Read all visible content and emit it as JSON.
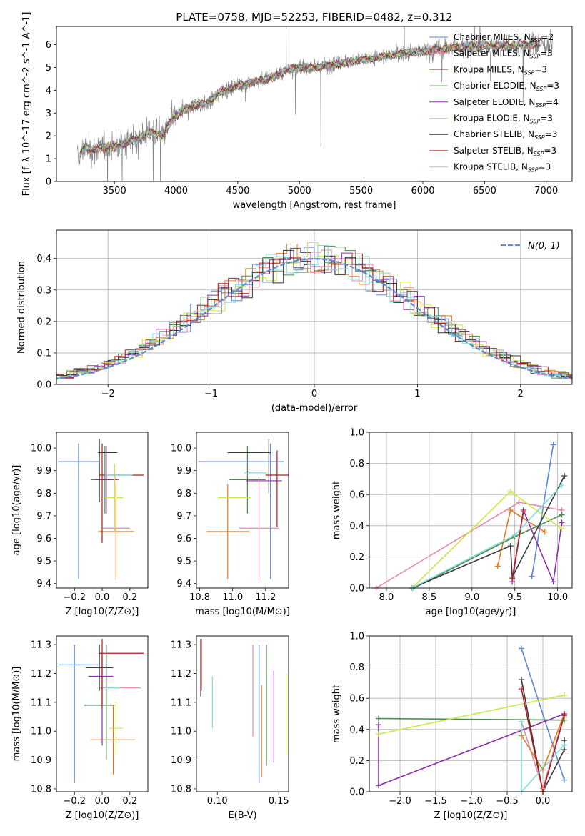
{
  "title": "PLATE=0758, MJD=52253, FIBERID=0482, z=0.312",
  "colors": {
    "Chabrier MILES": "#5b87d6",
    "Salpeter MILES": "#e68aa8",
    "Kroupa MILES": "#e07b22",
    "Chabrier ELODIE": "#4e8a4e",
    "Salpeter ELODIE": "#8e2ea6",
    "Kroupa ELODIE": "#c8e84a",
    "Chabrier STELIB": "#3a3a3a",
    "Salpeter STELIB": "#b01c1c",
    "Kroupa STELIB": "#7fdcdc",
    "data": "#808080",
    "normal": "#5b87d6"
  },
  "chart_data": [
    {
      "id": "spectrum",
      "type": "line",
      "title": "PLATE=0758, MJD=52253, FIBERID=0482, z=0.312",
      "xlabel": "wavelength [Angstrom, rest frame]",
      "ylabel": "Flux [f_λ 10^-17 erg cm^-2 s^-1 A^-1]",
      "xlim": [
        3030,
        7210
      ],
      "ylim": [
        0,
        6.8
      ],
      "xticks": [
        3500,
        4000,
        4500,
        5000,
        5500,
        6000,
        6500,
        7000
      ],
      "yticks": [
        0,
        1,
        2,
        3,
        4,
        5,
        6
      ],
      "legend": "top-right",
      "legend_entries": [
        {
          "name": "Chabrier MILES",
          "sub": "2"
        },
        {
          "name": "Salpeter MILES",
          "sub": "3"
        },
        {
          "name": "Kroupa MILES",
          "sub": "3"
        },
        {
          "name": "Chabrier ELODIE",
          "sub": "3"
        },
        {
          "name": "Salpeter ELODIE",
          "sub": "4"
        },
        {
          "name": "Kroupa ELODIE",
          "sub": "3"
        },
        {
          "name": "Chabrier STELIB",
          "sub": "3"
        },
        {
          "name": "Salpeter STELIB",
          "sub": "3"
        },
        {
          "name": "Kroupa STELIB",
          "sub": "3"
        }
      ],
      "continuum": [
        [
          3200,
          1.0
        ],
        [
          3260,
          1.55
        ],
        [
          3300,
          1.35
        ],
        [
          3400,
          1.5
        ],
        [
          3500,
          1.5
        ],
        [
          3600,
          1.7
        ],
        [
          3700,
          1.9
        ],
        [
          3800,
          2.2
        ],
        [
          3900,
          2.0
        ],
        [
          3950,
          2.6
        ],
        [
          4050,
          3.1
        ],
        [
          4150,
          3.35
        ],
        [
          4250,
          3.4
        ],
        [
          4350,
          3.9
        ],
        [
          4500,
          4.2
        ],
        [
          4650,
          4.4
        ],
        [
          4800,
          4.6
        ],
        [
          4900,
          4.9
        ],
        [
          5000,
          5.0
        ],
        [
          5150,
          5.0
        ],
        [
          5300,
          5.15
        ],
        [
          5450,
          5.3
        ],
        [
          5600,
          5.4
        ],
        [
          5800,
          5.6
        ],
        [
          6000,
          5.7
        ],
        [
          6200,
          5.85
        ],
        [
          6400,
          5.95
        ],
        [
          6600,
          5.95
        ],
        [
          6800,
          6.0
        ],
        [
          7050,
          6.05
        ]
      ],
      "model_range": [
        3220,
        6950
      ],
      "data_range": [
        3200,
        7050
      ],
      "data_noise_sd": 0.45,
      "model_noise_sd": 0.08
    },
    {
      "id": "residuals",
      "type": "area",
      "xlabel": "(data-model)/error",
      "ylabel": "Normed distribution",
      "xlim": [
        -2.5,
        2.5
      ],
      "ylim": [
        0,
        0.49
      ],
      "xticks": [
        -2,
        -1,
        0,
        1,
        2
      ],
      "yticks": [
        0,
        0.1,
        0.2,
        0.3,
        0.4
      ],
      "legend": "top-right",
      "legend_label": "N(0, 1)",
      "bin_width": 0.1,
      "n_histograms": 9
    },
    {
      "id": "age_vs_Z",
      "type": "scatter",
      "xlabel": "Z [log10(Z/Z⊙)]",
      "ylabel": "age [log10(age/yr)]",
      "xlim": [
        -0.33,
        0.33
      ],
      "ylim": [
        9.38,
        10.07
      ],
      "xticks": [
        -0.2,
        0.0,
        0.2
      ],
      "yticks": [
        9.4,
        9.5,
        9.6,
        9.7,
        9.8,
        9.9,
        10.0
      ],
      "points": [
        {
          "model": "Chabrier MILES",
          "x": -0.17,
          "y": 9.94,
          "xerr": 0.15,
          "yerr": 0.08
        },
        {
          "model": "Chabrier MILES",
          "x": -0.17,
          "y": 9.72,
          "xerr": 0.0,
          "yerr": 0.3
        },
        {
          "model": "Salpeter MILES",
          "x": 0.1,
          "y": 9.645,
          "xerr": 0.1,
          "yerr": 0.23
        },
        {
          "model": "Kroupa MILES",
          "x": 0.1,
          "y": 9.63,
          "xerr": 0.13,
          "yerr": 0.21
        },
        {
          "model": "Chabrier ELODIE",
          "x": 0.02,
          "y": 9.86,
          "xerr": 0.1,
          "yerr": 0.15
        },
        {
          "model": "Salpeter ELODIE",
          "x": 0.03,
          "y": 9.86,
          "xerr": 0.08,
          "yerr": 0.15
        },
        {
          "model": "Kroupa ELODIE",
          "x": 0.09,
          "y": 9.78,
          "xerr": 0.06,
          "yerr": 0.15
        },
        {
          "model": "Chabrier STELIB",
          "x": -0.02,
          "y": 9.9,
          "xerr": 0.0,
          "yerr": 0.14
        },
        {
          "model": "Chabrier STELIB",
          "x": 0.04,
          "y": 9.98,
          "xerr": 0.07,
          "yerr": 0.0
        },
        {
          "model": "Salpeter STELIB",
          "x": 0.14,
          "y": 9.88,
          "xerr": 0.16,
          "yerr": 0.0
        },
        {
          "model": "Salpeter STELIB",
          "x": 0.0,
          "y": 9.8,
          "xerr": 0.0,
          "yerr": 0.22
        },
        {
          "model": "Kroupa STELIB",
          "x": 0.12,
          "y": 9.88,
          "xerr": 0.1,
          "yerr": 0.0
        }
      ]
    },
    {
      "id": "age_vs_mass",
      "type": "scatter",
      "xlabel": "mass [log10(M/M⊙)]",
      "ylabel": "",
      "xlim": [
        10.78,
        11.34
      ],
      "ylim": [
        9.38,
        10.07
      ],
      "xticks": [
        10.8,
        11.0,
        11.2
      ],
      "yticks": [
        9.4,
        9.5,
        9.6,
        9.7,
        9.8,
        9.9,
        10.0
      ],
      "points": [
        {
          "model": "Chabrier MILES",
          "x": 11.05,
          "y": 9.94,
          "xerr": 0.26,
          "yerr": 0.0
        },
        {
          "model": "Chabrier MILES",
          "x": 11.23,
          "y": 9.72,
          "xerr": 0.0,
          "yerr": 0.3
        },
        {
          "model": "Salpeter MILES",
          "x": 11.16,
          "y": 9.645,
          "xerr": 0.12,
          "yerr": 0.23
        },
        {
          "model": "Kroupa MILES",
          "x": 10.97,
          "y": 9.63,
          "xerr": 0.13,
          "yerr": 0.21
        },
        {
          "model": "Chabrier ELODIE",
          "x": 11.09,
          "y": 9.86,
          "xerr": 0.11,
          "yerr": 0.15
        },
        {
          "model": "Salpeter ELODIE",
          "x": 11.19,
          "y": 9.855,
          "xerr": 0.11,
          "yerr": 0.0
        },
        {
          "model": "Kroupa ELODIE",
          "x": 11.01,
          "y": 9.78,
          "xerr": 0.1,
          "yerr": 0.0
        },
        {
          "model": "Chabrier STELIB",
          "x": 11.22,
          "y": 9.92,
          "xerr": 0.0,
          "yerr": 0.12
        },
        {
          "model": "Chabrier STELIB",
          "x": 11.1,
          "y": 9.98,
          "xerr": 0.13,
          "yerr": 0.0
        },
        {
          "model": "Salpeter STELIB",
          "x": 11.27,
          "y": 9.88,
          "xerr": 0.07,
          "yerr": 0.0
        },
        {
          "model": "Salpeter STELIB",
          "x": 11.27,
          "y": 9.82,
          "xerr": 0.0,
          "yerr": 0.17
        },
        {
          "model": "Kroupa STELIB",
          "x": 11.14,
          "y": 9.89,
          "xerr": 0.07,
          "yerr": 0.0
        }
      ]
    },
    {
      "id": "weight_vs_age",
      "type": "line",
      "xlabel": "age [log10(age/yr)]",
      "ylabel": "mass weight",
      "xlim": [
        7.8,
        10.17
      ],
      "ylim": [
        0,
        1.0
      ],
      "xticks": [
        8.0,
        8.5,
        9.0,
        9.5,
        10.0
      ],
      "yticks": [
        0.0,
        0.2,
        0.4,
        0.6,
        0.8,
        1.0
      ],
      "series": [
        {
          "model": "Chabrier MILES",
          "x": [
            9.7,
            9.95
          ],
          "y": [
            0.075,
            0.92
          ]
        },
        {
          "model": "Salpeter MILES",
          "x": [
            7.88,
            9.55,
            10.05
          ],
          "y": [
            0.0,
            0.55,
            0.5
          ]
        },
        {
          "model": "Kroupa MILES",
          "x": [
            9.3,
            9.45,
            9.85
          ],
          "y": [
            0.14,
            0.5,
            0.36
          ]
        },
        {
          "model": "Chabrier ELODIE",
          "x": [
            8.32,
            9.5,
            10.05
          ],
          "y": [
            0.0,
            0.33,
            0.47
          ]
        },
        {
          "model": "Salpeter ELODIE",
          "x": [
            9.47,
            9.6,
            9.95,
            10.05
          ],
          "y": [
            0.04,
            0.5,
            0.04,
            0.42
          ]
        },
        {
          "model": "Kroupa ELODIE",
          "x": [
            8.3,
            9.45,
            10.05
          ],
          "y": [
            0.0,
            0.62,
            0.38
          ]
        },
        {
          "model": "Chabrier STELIB",
          "x": [
            8.3,
            9.45,
            9.47,
            10.08
          ],
          "y": [
            0.0,
            0.27,
            0.07,
            0.72
          ]
        },
        {
          "model": "Salpeter STELIB",
          "x": [
            9.47,
            9.6
          ],
          "y": [
            0.06,
            0.49
          ]
        },
        {
          "model": "Kroupa STELIB",
          "x": [
            8.3,
            9.5,
            10.05
          ],
          "y": [
            0.0,
            0.34,
            0.66
          ]
        }
      ]
    },
    {
      "id": "mass_vs_Z",
      "type": "scatter",
      "xlabel": "Z [log10(Z/Z⊙)]",
      "ylabel": "mass [log10(M/M⊙)]",
      "xlim": [
        -0.33,
        0.33
      ],
      "ylim": [
        10.79,
        11.33
      ],
      "xticks": [
        -0.2,
        0.0,
        0.2
      ],
      "yticks": [
        10.8,
        10.9,
        11.0,
        11.1,
        11.2,
        11.3
      ],
      "points": [
        {
          "model": "Chabrier MILES",
          "x": -0.17,
          "y": 11.23,
          "xerr": 0.14,
          "yerr": 0.0
        },
        {
          "model": "Chabrier MILES",
          "x": -0.2,
          "y": 11.06,
          "xerr": 0.0,
          "yerr": 0.24
        },
        {
          "model": "Salpeter MILES",
          "x": 0.13,
          "y": 11.15,
          "xerr": 0.15,
          "yerr": 0.0
        },
        {
          "model": "Kroupa MILES",
          "x": 0.08,
          "y": 10.97,
          "xerr": 0.16,
          "yerr": 0.12
        },
        {
          "model": "Chabrier ELODIE",
          "x": -0.02,
          "y": 11.09,
          "xerr": 0.11,
          "yerr": 0.0
        },
        {
          "model": "Chabrier ELODIE",
          "x": 0.03,
          "y": 11.1,
          "xerr": 0.0,
          "yerr": 0.2
        },
        {
          "model": "Salpeter ELODIE",
          "x": -0.01,
          "y": 11.19,
          "xerr": 0.09,
          "yerr": 0.0
        },
        {
          "model": "Salpeter ELODIE",
          "x": 0.0,
          "y": 11.11,
          "xerr": 0.0,
          "yerr": 0.16
        },
        {
          "model": "Kroupa ELODIE",
          "x": 0.1,
          "y": 11.01,
          "xerr": 0.05,
          "yerr": 0.09
        },
        {
          "model": "Chabrier STELIB",
          "x": -0.02,
          "y": 11.22,
          "xerr": 0.1,
          "yerr": 0.08
        },
        {
          "model": "Salpeter STELIB",
          "x": 0.14,
          "y": 11.27,
          "xerr": 0.16,
          "yerr": 0.0
        },
        {
          "model": "Salpeter STELIB",
          "x": 0.0,
          "y": 11.2,
          "xerr": 0.0,
          "yerr": 0.12
        },
        {
          "model": "Kroupa STELIB",
          "x": 0.08,
          "y": 11.15,
          "xerr": 0.06,
          "yerr": 0.0
        }
      ]
    },
    {
      "id": "mass_vs_ebv",
      "type": "scatter",
      "xlabel": "E(B-V)",
      "ylabel": "",
      "xlim": [
        0.083,
        0.158
      ],
      "ylim": [
        10.79,
        11.33
      ],
      "xticks": [
        0.1,
        0.15
      ],
      "yticks": [
        10.8,
        10.9,
        11.0,
        11.1,
        11.2,
        11.3
      ],
      "points": [
        {
          "model": "Chabrier MILES",
          "x": 0.134,
          "y": 11.06,
          "xerr": 0.0,
          "yerr": 0.24
        },
        {
          "model": "Salpeter MILES",
          "x": 0.129,
          "y": 11.14,
          "xerr": 0.0,
          "yerr": 0.16
        },
        {
          "model": "Kroupa MILES",
          "x": 0.136,
          "y": 11.0,
          "xerr": 0.0,
          "yerr": 0.16
        },
        {
          "model": "Chabrier ELODIE",
          "x": 0.14,
          "y": 11.09,
          "xerr": 0.0,
          "yerr": 0.21
        },
        {
          "model": "Salpeter ELODIE",
          "x": 0.146,
          "y": 11.05,
          "xerr": 0.0,
          "yerr": 0.16
        },
        {
          "model": "Kroupa ELODIE",
          "x": 0.156,
          "y": 11.06,
          "xerr": 0.0,
          "yerr": 0.14
        },
        {
          "model": "Chabrier STELIB",
          "x": 0.0865,
          "y": 11.22,
          "xerr": 0.0,
          "yerr": 0.1
        },
        {
          "model": "Salpeter STELIB",
          "x": 0.087,
          "y": 11.23,
          "xerr": 0.0,
          "yerr": 0.09
        },
        {
          "model": "Kroupa STELIB",
          "x": 0.096,
          "y": 11.1,
          "xerr": 0.0,
          "yerr": 0.09
        }
      ]
    },
    {
      "id": "weight_vs_Z",
      "type": "line",
      "xlabel": "Z [log10(Z/Z⊙)]",
      "ylabel": "mass weight",
      "xlim": [
        -2.43,
        0.41
      ],
      "ylim": [
        0,
        1.0
      ],
      "xticks": [
        -2.0,
        -1.5,
        -1.0,
        -0.5,
        0.0
      ],
      "yticks": [
        0.0,
        0.2,
        0.4,
        0.6,
        0.8,
        1.0
      ],
      "series": [
        {
          "model": "Chabrier MILES",
          "x": [
            -0.3,
            0.3
          ],
          "y": [
            0.92,
            0.075
          ]
        },
        {
          "model": "Salpeter MILES",
          "x": [
            -0.3,
            0.0,
            0.3
          ],
          "y": [
            0.45,
            0.02,
            0.5
          ]
        },
        {
          "model": "Kroupa MILES",
          "x": [
            -0.3,
            0.0,
            0.3
          ],
          "y": [
            0.36,
            0.14,
            0.5
          ]
        },
        {
          "model": "Chabrier ELODIE",
          "x": [
            -2.3,
            0.3
          ],
          "y": [
            0.47,
            0.46
          ]
        },
        {
          "model": "Salpeter ELODIE",
          "x": [
            -2.3,
            -2.3,
            0.3
          ],
          "y": [
            0.43,
            0.04,
            0.5
          ]
        },
        {
          "model": "Kroupa ELODIE",
          "x": [
            -2.3,
            0.3
          ],
          "y": [
            0.37,
            0.62
          ]
        },
        {
          "model": "Chabrier STELIB",
          "x": [
            -0.3,
            0.0,
            0.3,
            0.3
          ],
          "y": [
            0.72,
            0.0,
            0.27,
            0.33
          ]
        },
        {
          "model": "Salpeter STELIB",
          "x": [
            -0.3,
            0.0,
            0.3
          ],
          "y": [
            0.66,
            0.0,
            0.49
          ]
        },
        {
          "model": "Kroupa STELIB",
          "x": [
            -0.3,
            -0.3,
            0.3
          ],
          "y": [
            0.45,
            0.0,
            0.3
          ]
        }
      ]
    }
  ]
}
